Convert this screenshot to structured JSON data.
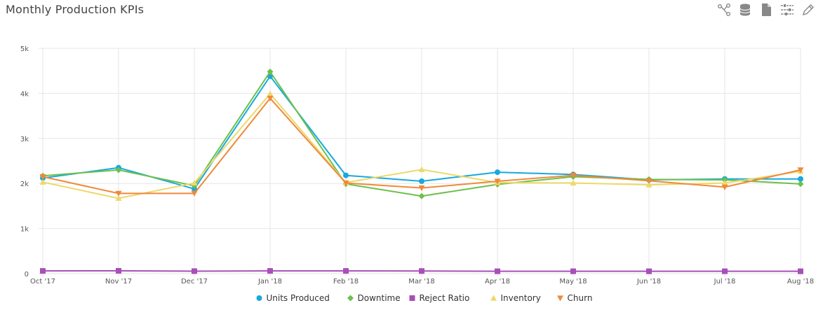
{
  "header": {
    "title": "Monthly Production KPIs",
    "tools": [
      "share-icon",
      "database-icon",
      "document-icon",
      "sliders-icon",
      "pencil-icon"
    ]
  },
  "chart_data": {
    "type": "line",
    "title": "Monthly Production KPIs",
    "xlabel": "",
    "ylabel": "",
    "ylim": [
      0,
      5000
    ],
    "yticks": [
      "0",
      "1k",
      "2k",
      "3k",
      "4k",
      "5k"
    ],
    "grid": true,
    "legend_position": "bottom-center",
    "categories": [
      "Oct '17",
      "Nov '17",
      "Dec '17",
      "Jan '18",
      "Feb '18",
      "Mar '18",
      "Apr '18",
      "May '18",
      "Jun '18",
      "Jul '18",
      "Aug '18"
    ],
    "series": [
      {
        "name": "Units Produced",
        "color": "#16a9e0",
        "marker": "circle",
        "values": [
          2120,
          2350,
          1880,
          4380,
          2180,
          2050,
          2250,
          2200,
          2080,
          2100,
          2100
        ]
      },
      {
        "name": "Downtime",
        "color": "#6cc04a",
        "marker": "diamond",
        "values": [
          2170,
          2300,
          1950,
          4480,
          1990,
          1720,
          1980,
          2150,
          2090,
          2080,
          1990
        ]
      },
      {
        "name": "Reject Ratio",
        "color": "#a84fb8",
        "marker": "square",
        "values": [
          60,
          62,
          55,
          60,
          60,
          58,
          52,
          52,
          52,
          52,
          52
        ]
      },
      {
        "name": "Inventory",
        "color": "#ecd96a",
        "marker": "triangle",
        "values": [
          2030,
          1670,
          2010,
          3990,
          2020,
          2310,
          2020,
          2010,
          1970,
          2010,
          2270
        ]
      },
      {
        "name": "Churn",
        "color": "#f0893a",
        "marker": "triangle-down",
        "values": [
          2150,
          1780,
          1780,
          3890,
          2010,
          1900,
          2050,
          2180,
          2060,
          1920,
          2300
        ]
      }
    ]
  }
}
